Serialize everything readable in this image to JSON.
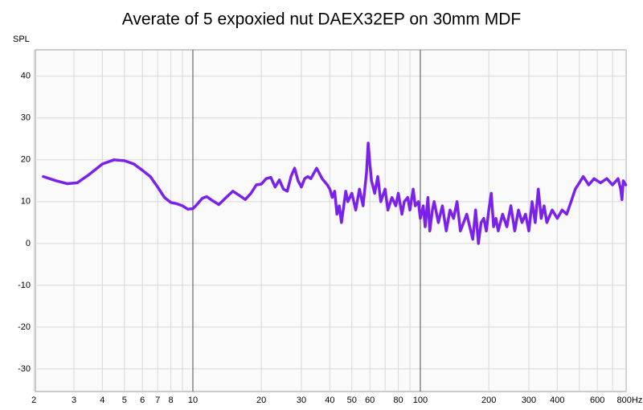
{
  "chart_data": {
    "type": "line",
    "title": "Averate of 5 expoxied nut DAEX32EP on 30mm MDF",
    "y_label": "SPL",
    "x_scale": "log",
    "grid": true,
    "color": "#7a22ec",
    "xlim": [
      2.03,
      803
    ],
    "ylim": [
      -35.4,
      46.3
    ],
    "xticks": [
      2,
      3,
      4,
      5,
      6,
      7,
      8,
      10,
      20,
      30,
      40,
      50,
      60,
      80,
      100,
      200,
      300,
      400,
      600,
      {
        "value": 800,
        "label": "800Hz"
      }
    ],
    "xminor": [
      9,
      70,
      90,
      500,
      700
    ],
    "xmajor": [
      10,
      100
    ],
    "yticks": [
      -30,
      -20,
      -10,
      0,
      10,
      20,
      30,
      40
    ],
    "x": [
      2.2,
      2.5,
      2.8,
      3.1,
      3.5,
      4,
      4.5,
      5,
      5.5,
      6,
      6.5,
      7,
      7.5,
      8,
      8.5,
      9,
      9.5,
      10,
      10.5,
      11,
      11.5,
      12,
      13,
      14,
      15,
      16,
      17,
      18,
      19,
      20,
      21,
      22,
      23,
      24,
      25,
      26,
      27,
      28,
      29,
      30,
      31,
      32,
      33,
      35,
      37,
      39,
      40,
      41,
      42,
      43,
      44,
      45,
      47,
      48,
      50,
      52,
      54,
      56,
      58,
      59,
      60,
      61,
      63,
      65,
      67,
      70,
      72,
      75,
      78,
      80,
      83,
      85,
      88,
      90,
      93,
      95,
      98,
      100,
      103,
      105,
      108,
      110,
      113,
      115,
      120,
      125,
      130,
      135,
      140,
      145,
      150,
      160,
      170,
      175,
      180,
      185,
      190,
      195,
      200,
      205,
      210,
      215,
      220,
      230,
      240,
      250,
      260,
      270,
      280,
      290,
      300,
      310,
      320,
      330,
      340,
      350,
      360,
      380,
      400,
      420,
      440,
      460,
      480,
      500,
      520,
      550,
      580,
      620,
      660,
      700,
      740,
      760,
      770,
      780,
      800
    ],
    "values": [
      16,
      15,
      14.3,
      14.5,
      16.5,
      19,
      20,
      19.8,
      19,
      17.5,
      16,
      13.5,
      11,
      9.8,
      9.5,
      9,
      8.2,
      8.3,
      9.5,
      10.8,
      11.2,
      10.5,
      9.3,
      11,
      12.5,
      11.5,
      10.5,
      12,
      14,
      14.2,
      15.5,
      15.8,
      13.5,
      15.2,
      13,
      12.5,
      16,
      18,
      15,
      13.5,
      15.5,
      16,
      15.5,
      18,
      15.5,
      14,
      13,
      11,
      12.5,
      7,
      9,
      5,
      12.5,
      10,
      12,
      8,
      13,
      9,
      17,
      24,
      19,
      15,
      12,
      16,
      10,
      13,
      8,
      11,
      9,
      12,
      7,
      10,
      11,
      8,
      13,
      9,
      10,
      6,
      9,
      4,
      11,
      3,
      8,
      10,
      5,
      9,
      3,
      8,
      6,
      10,
      3,
      7,
      1,
      8,
      0,
      5,
      6,
      3,
      8,
      12,
      4,
      6,
      3,
      7,
      4,
      9,
      3,
      8,
      5,
      7,
      3,
      10,
      5,
      13,
      6,
      9,
      5,
      8,
      6,
      8,
      7,
      10,
      13,
      14.5,
      16,
      14,
      15.5,
      14.5,
      15.5,
      14,
      15.5,
      13,
      10.5,
      15,
      14
    ]
  }
}
